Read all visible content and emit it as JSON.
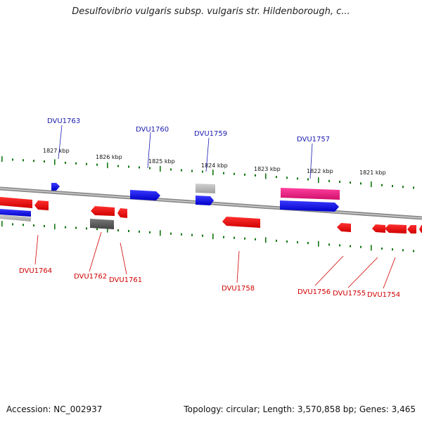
{
  "title": "Desulfovibrio vulgaris subsp. vulgaris str. Hildenborough, c...",
  "footer": {
    "accession": "Accession: NC_002937",
    "stats": "Topology: circular; Length: 3,570,858 bp; Genes: 3,465"
  },
  "colors": {
    "forward_gene": "#0000ee",
    "reverse_gene": "#ee0000",
    "pseudo_gene": "#999999",
    "rna_gene": "#ee2288",
    "tick": "#117711",
    "backbone": "#8c8c8c"
  },
  "kbp_labels": [
    "1827 kbp",
    "1826 kbp",
    "1825 kbp",
    "1824 kbp",
    "1823 kbp",
    "1822 kbp",
    "1821 kbp"
  ],
  "top_genes": [
    "DVU1763",
    "DVU1760",
    "DVU1759",
    "DVU1757"
  ],
  "bottom_genes": [
    "DVU1764",
    "DVU1762",
    "DVU1761",
    "DVU1758",
    "DVU1756",
    "DVU1755",
    "DVU1754"
  ]
}
